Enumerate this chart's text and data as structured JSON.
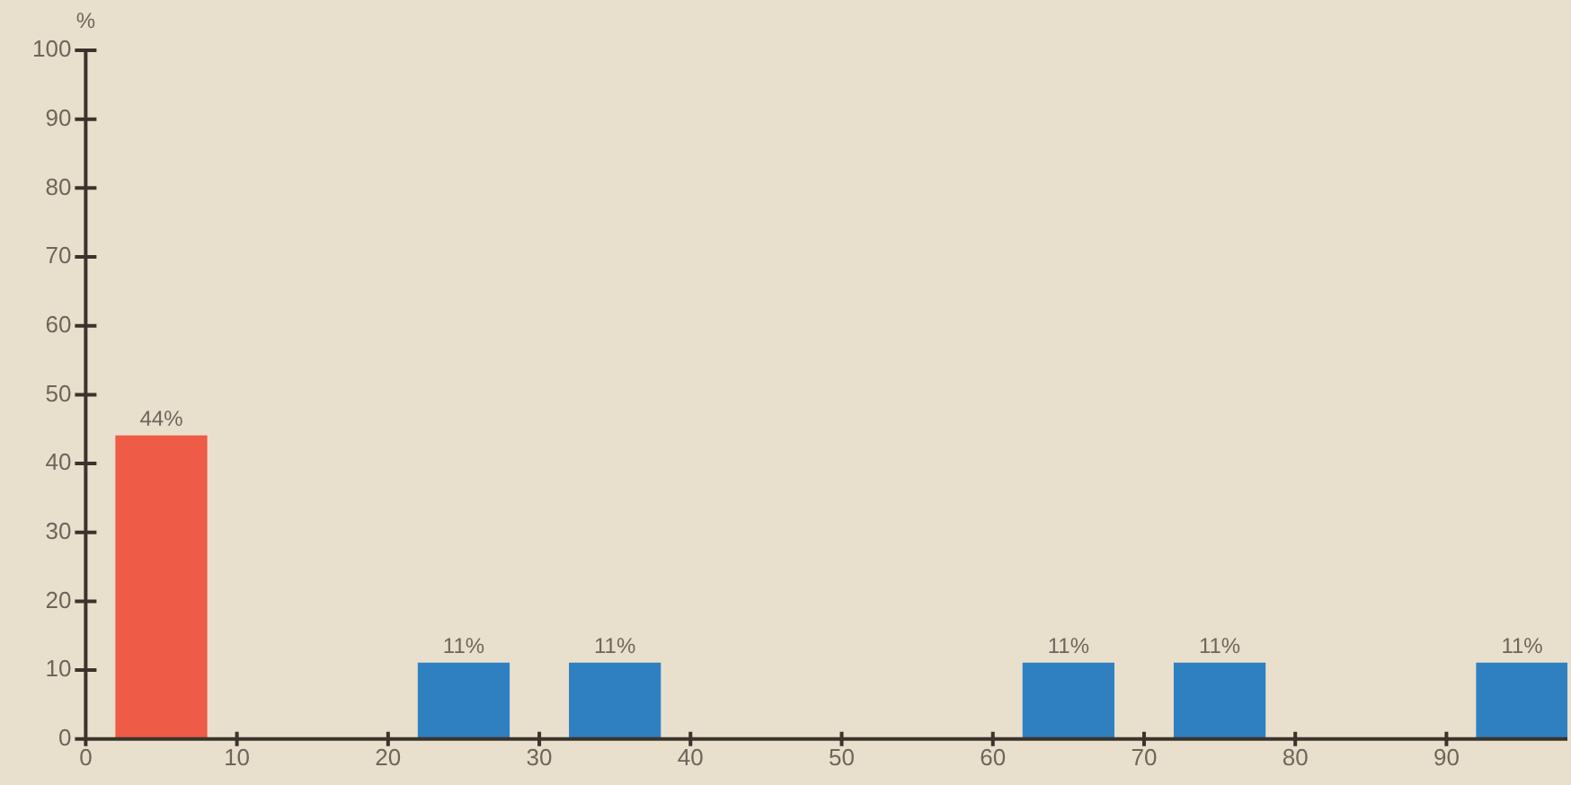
{
  "chart_data": {
    "type": "histogram",
    "ylabel": "%",
    "bins": [
      2,
      8,
      22,
      28,
      32,
      38,
      62,
      68,
      72,
      78,
      92,
      98
    ],
    "values": [
      44,
      0,
      11,
      0,
      11,
      0,
      11,
      0,
      11,
      0,
      11
    ],
    "colors": [
      "#ee5b46",
      "#2f80c1",
      "#2f80c1",
      "#2f80c1",
      "#2f80c1",
      "#2f80c1",
      "#2f80c1",
      "#2f80c1",
      "#2f80c1",
      "#2f80c1",
      "#2f80c1"
    ],
    "value_labels": [
      "44%",
      null,
      "11%",
      null,
      "11%",
      null,
      "11%",
      null,
      "11%",
      null,
      "11%"
    ],
    "xlim": [
      0,
      98
    ],
    "xticks": [
      0,
      10,
      20,
      30,
      40,
      50,
      60,
      70,
      80,
      90
    ],
    "ylim": [
      0,
      100
    ],
    "yticks": [
      0,
      10,
      20,
      30,
      40,
      50,
      60,
      70,
      80,
      90,
      100
    ],
    "grid": false,
    "legend": false
  }
}
